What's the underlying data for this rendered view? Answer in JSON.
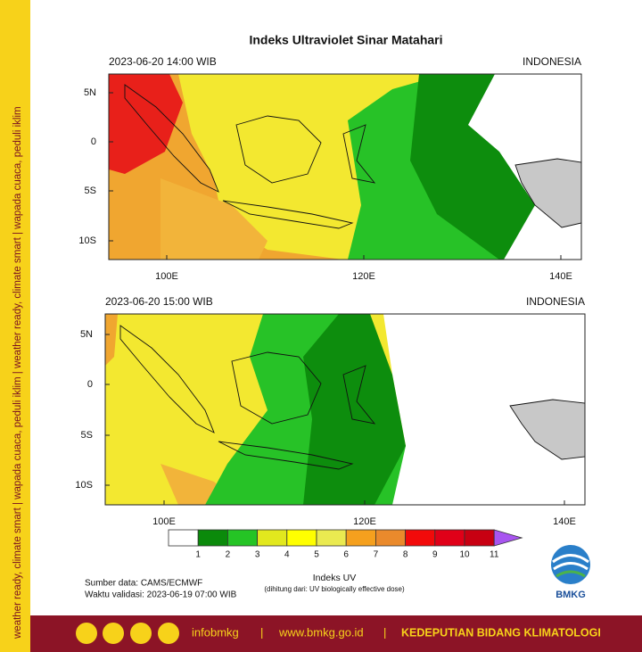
{
  "side_text": "weather ready, climate smart | wapada cuaca, peduli iklim | weather ready, climate smart | wapada cuaca, peduli iklim",
  "title": "Indeks Ultraviolet Sinar Matahari",
  "panels": [
    {
      "time": "2023-06-20  14:00 WIB",
      "region": "INDONESIA",
      "lat_labels": [
        "5N",
        "0",
        "5S",
        "10S"
      ],
      "lon_labels": [
        "100E",
        "120E",
        "140E"
      ]
    },
    {
      "time": "2023-06-20  15:00 WIB",
      "region": "INDONESIA",
      "lat_labels": [
        "5N",
        "0",
        "5S",
        "10S"
      ],
      "lon_labels": [
        "100E",
        "120E",
        "140E"
      ]
    }
  ],
  "colorbar": {
    "colors": [
      "#ffffff",
      "#0b8a0b",
      "#25c425",
      "#e2e81e",
      "#ffff00",
      "#eaea50",
      "#f5a01e",
      "#ea8a2c",
      "#f20a0a",
      "#e00018",
      "#c80012",
      "#a855f0"
    ],
    "ticks": [
      1,
      2,
      3,
      4,
      5,
      6,
      7,
      8,
      9,
      10,
      11
    ],
    "label": "Indeks UV",
    "note": "(dihitung dari: UV biologically effective dose)"
  },
  "source": "Sumber data: CAMS/ECMWF",
  "validity": "Waktu validasi: 2023-06-19 07:00 WIB",
  "logo": "BMKG",
  "footer": {
    "handle": "infobmkg",
    "separator": "|",
    "website": "www.bmkg.go.id",
    "department": "KEDEPUTIAN BIDANG KLIMATOLOGI"
  }
}
